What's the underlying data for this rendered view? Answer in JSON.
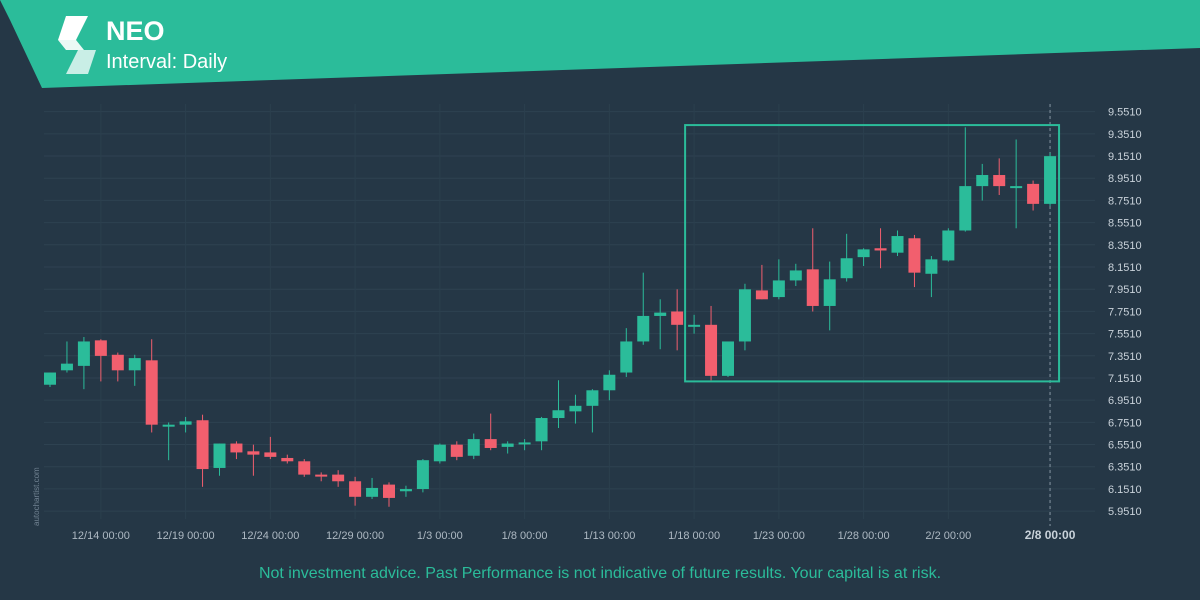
{
  "header": {
    "asset": "NEO",
    "interval": "Interval: Daily"
  },
  "footer": {
    "disclaimer": "Not investment advice. Past Performance is not indicative of future results. Your capital is at risk.",
    "watermark": "autochartist.com"
  },
  "colors": {
    "background": "#253746",
    "banner": "#2bbc9a",
    "bullish": "#2bbc9a",
    "bearish": "#f25f6e",
    "pattern_box": "#2bbc9a"
  },
  "chart_data": {
    "type": "candlestick",
    "y_ticks": [
      "9.5510",
      "9.3510",
      "9.1510",
      "8.9510",
      "8.7510",
      "8.5510",
      "8.3510",
      "8.1510",
      "7.9510",
      "7.7510",
      "7.5510",
      "7.3510",
      "7.1510",
      "6.9510",
      "6.7510",
      "6.5510",
      "6.3510",
      "6.1510",
      "5.9510"
    ],
    "x_ticks": [
      "12/14 00:00",
      "12/19 00:00",
      "12/24 00:00",
      "12/29 00:00",
      "1/3 00:00",
      "1/8 00:00",
      "1/13 00:00",
      "1/18 00:00",
      "1/23 00:00",
      "1/28 00:00",
      "2/2 00:00",
      "2/8 00:00"
    ],
    "ylim": [
      5.88,
      9.62
    ],
    "grid": true,
    "start_date": "12/11",
    "pattern_box": {
      "start": "1/18",
      "end": "2/8",
      "low": 7.12,
      "high": 9.43
    },
    "candles": [
      {
        "date": "12/11",
        "o": 7.09,
        "h": 7.2,
        "l": 7.07,
        "c": 7.2
      },
      {
        "date": "12/12",
        "o": 7.22,
        "h": 7.48,
        "l": 7.2,
        "c": 7.28
      },
      {
        "date": "12/13",
        "o": 7.26,
        "h": 7.52,
        "l": 7.05,
        "c": 7.48
      },
      {
        "date": "12/14",
        "o": 7.49,
        "h": 7.5,
        "l": 7.12,
        "c": 7.35
      },
      {
        "date": "12/15",
        "o": 7.36,
        "h": 7.38,
        "l": 7.12,
        "c": 7.22
      },
      {
        "date": "12/16",
        "o": 7.22,
        "h": 7.36,
        "l": 7.08,
        "c": 7.33
      },
      {
        "date": "12/17",
        "o": 7.31,
        "h": 7.5,
        "l": 6.66,
        "c": 6.73
      },
      {
        "date": "12/18",
        "o": 6.72,
        "h": 6.75,
        "l": 6.41,
        "c": 6.73
      },
      {
        "date": "12/19",
        "o": 6.73,
        "h": 6.8,
        "l": 6.66,
        "c": 6.76
      },
      {
        "date": "12/20",
        "o": 6.77,
        "h": 6.82,
        "l": 6.17,
        "c": 6.33
      },
      {
        "date": "12/21",
        "o": 6.34,
        "h": 6.56,
        "l": 6.27,
        "c": 6.56
      },
      {
        "date": "12/22",
        "o": 6.56,
        "h": 6.58,
        "l": 6.42,
        "c": 6.48
      },
      {
        "date": "12/23",
        "o": 6.49,
        "h": 6.55,
        "l": 6.27,
        "c": 6.46
      },
      {
        "date": "12/24",
        "o": 6.48,
        "h": 6.62,
        "l": 6.42,
        "c": 6.44
      },
      {
        "date": "12/25",
        "o": 6.43,
        "h": 6.46,
        "l": 6.38,
        "c": 6.4
      },
      {
        "date": "12/26",
        "o": 6.4,
        "h": 6.42,
        "l": 6.26,
        "c": 6.28
      },
      {
        "date": "12/27",
        "o": 6.28,
        "h": 6.3,
        "l": 6.22,
        "c": 6.27
      },
      {
        "date": "12/28",
        "o": 6.28,
        "h": 6.32,
        "l": 6.17,
        "c": 6.22
      },
      {
        "date": "12/29",
        "o": 6.22,
        "h": 6.26,
        "l": 6.0,
        "c": 6.08
      },
      {
        "date": "12/30",
        "o": 6.08,
        "h": 6.25,
        "l": 6.06,
        "c": 6.16
      },
      {
        "date": "12/31",
        "o": 6.19,
        "h": 6.21,
        "l": 5.99,
        "c": 6.07
      },
      {
        "date": "1/1",
        "o": 6.13,
        "h": 6.18,
        "l": 6.08,
        "c": 6.15
      },
      {
        "date": "1/2",
        "o": 6.15,
        "h": 6.42,
        "l": 6.12,
        "c": 6.41
      },
      {
        "date": "1/3",
        "o": 6.4,
        "h": 6.56,
        "l": 6.38,
        "c": 6.55
      },
      {
        "date": "1/4",
        "o": 6.55,
        "h": 6.58,
        "l": 6.41,
        "c": 6.44
      },
      {
        "date": "1/5",
        "o": 6.45,
        "h": 6.65,
        "l": 6.42,
        "c": 6.6
      },
      {
        "date": "1/6",
        "o": 6.6,
        "h": 6.83,
        "l": 6.5,
        "c": 6.52
      },
      {
        "date": "1/7",
        "o": 6.53,
        "h": 6.58,
        "l": 6.47,
        "c": 6.56
      },
      {
        "date": "1/8",
        "o": 6.56,
        "h": 6.6,
        "l": 6.5,
        "c": 6.57
      },
      {
        "date": "1/9",
        "o": 6.58,
        "h": 6.8,
        "l": 6.5,
        "c": 6.79
      },
      {
        "date": "1/10",
        "o": 6.79,
        "h": 7.13,
        "l": 6.7,
        "c": 6.86
      },
      {
        "date": "1/11",
        "o": 6.85,
        "h": 7.0,
        "l": 6.74,
        "c": 6.9
      },
      {
        "date": "1/12",
        "o": 6.9,
        "h": 7.05,
        "l": 6.66,
        "c": 7.04
      },
      {
        "date": "1/13",
        "o": 7.04,
        "h": 7.22,
        "l": 6.95,
        "c": 7.18
      },
      {
        "date": "1/14",
        "o": 7.2,
        "h": 7.6,
        "l": 7.16,
        "c": 7.48
      },
      {
        "date": "1/15",
        "o": 7.48,
        "h": 8.1,
        "l": 7.45,
        "c": 7.71
      },
      {
        "date": "1/16",
        "o": 7.71,
        "h": 7.86,
        "l": 7.41,
        "c": 7.74
      },
      {
        "date": "1/17",
        "o": 7.75,
        "h": 7.95,
        "l": 7.4,
        "c": 7.63
      },
      {
        "date": "1/18",
        "o": 7.63,
        "h": 7.72,
        "l": 7.55,
        "c": 7.63
      },
      {
        "date": "1/19",
        "o": 7.63,
        "h": 7.8,
        "l": 7.13,
        "c": 7.17
      },
      {
        "date": "1/20",
        "o": 7.17,
        "h": 7.48,
        "l": 7.16,
        "c": 7.48
      },
      {
        "date": "1/21",
        "o": 7.48,
        "h": 8.0,
        "l": 7.4,
        "c": 7.95
      },
      {
        "date": "1/22",
        "o": 7.94,
        "h": 8.17,
        "l": 7.86,
        "c": 7.86
      },
      {
        "date": "1/23",
        "o": 7.88,
        "h": 8.22,
        "l": 7.86,
        "c": 8.03
      },
      {
        "date": "1/24",
        "o": 8.03,
        "h": 8.18,
        "l": 7.98,
        "c": 8.12
      },
      {
        "date": "1/25",
        "o": 8.13,
        "h": 8.5,
        "l": 7.75,
        "c": 7.8
      },
      {
        "date": "1/26",
        "o": 7.8,
        "h": 8.2,
        "l": 7.58,
        "c": 8.04
      },
      {
        "date": "1/27",
        "o": 8.05,
        "h": 8.45,
        "l": 8.02,
        "c": 8.23
      },
      {
        "date": "1/28",
        "o": 8.24,
        "h": 8.32,
        "l": 8.16,
        "c": 8.31
      },
      {
        "date": "1/29",
        "o": 8.32,
        "h": 8.5,
        "l": 8.14,
        "c": 8.3
      },
      {
        "date": "1/30",
        "o": 8.28,
        "h": 8.48,
        "l": 8.25,
        "c": 8.43
      },
      {
        "date": "1/31",
        "o": 8.41,
        "h": 8.44,
        "l": 7.97,
        "c": 8.1
      },
      {
        "date": "2/1",
        "o": 8.09,
        "h": 8.25,
        "l": 7.88,
        "c": 8.22
      },
      {
        "date": "2/2",
        "o": 8.21,
        "h": 8.5,
        "l": 8.2,
        "c": 8.48
      },
      {
        "date": "2/3",
        "o": 8.48,
        "h": 9.41,
        "l": 8.47,
        "c": 8.88
      },
      {
        "date": "2/4",
        "o": 8.88,
        "h": 9.08,
        "l": 8.75,
        "c": 8.98
      },
      {
        "date": "2/5",
        "o": 8.98,
        "h": 9.13,
        "l": 8.8,
        "c": 8.88
      },
      {
        "date": "2/6",
        "o": 8.88,
        "h": 9.3,
        "l": 8.5,
        "c": 8.88
      },
      {
        "date": "2/7",
        "o": 8.9,
        "h": 8.93,
        "l": 8.66,
        "c": 8.72
      },
      {
        "date": "2/8",
        "o": 8.72,
        "h": 9.18,
        "l": 8.7,
        "c": 9.15
      }
    ]
  }
}
